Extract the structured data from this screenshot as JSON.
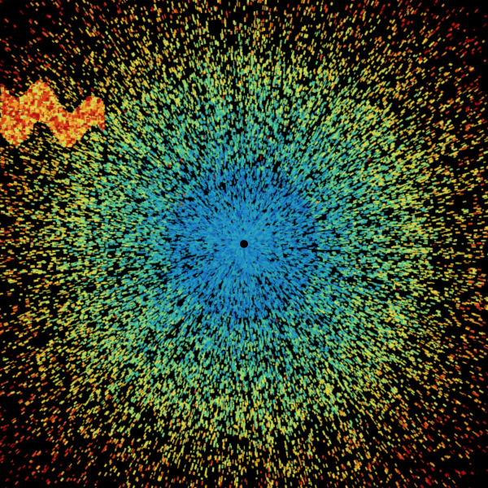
{
  "image": {
    "kind": "radar-reflectivity-scan",
    "background_color": "#000000",
    "palette": [
      "#0a3f8c",
      "#1466b8",
      "#1f8ac8",
      "#2aa6b8",
      "#3fbfa0",
      "#7fd27a",
      "#c8e05a",
      "#e8d040",
      "#e89a2a",
      "#d8401a",
      "#b01010"
    ],
    "center_marker_color": "#000000"
  }
}
